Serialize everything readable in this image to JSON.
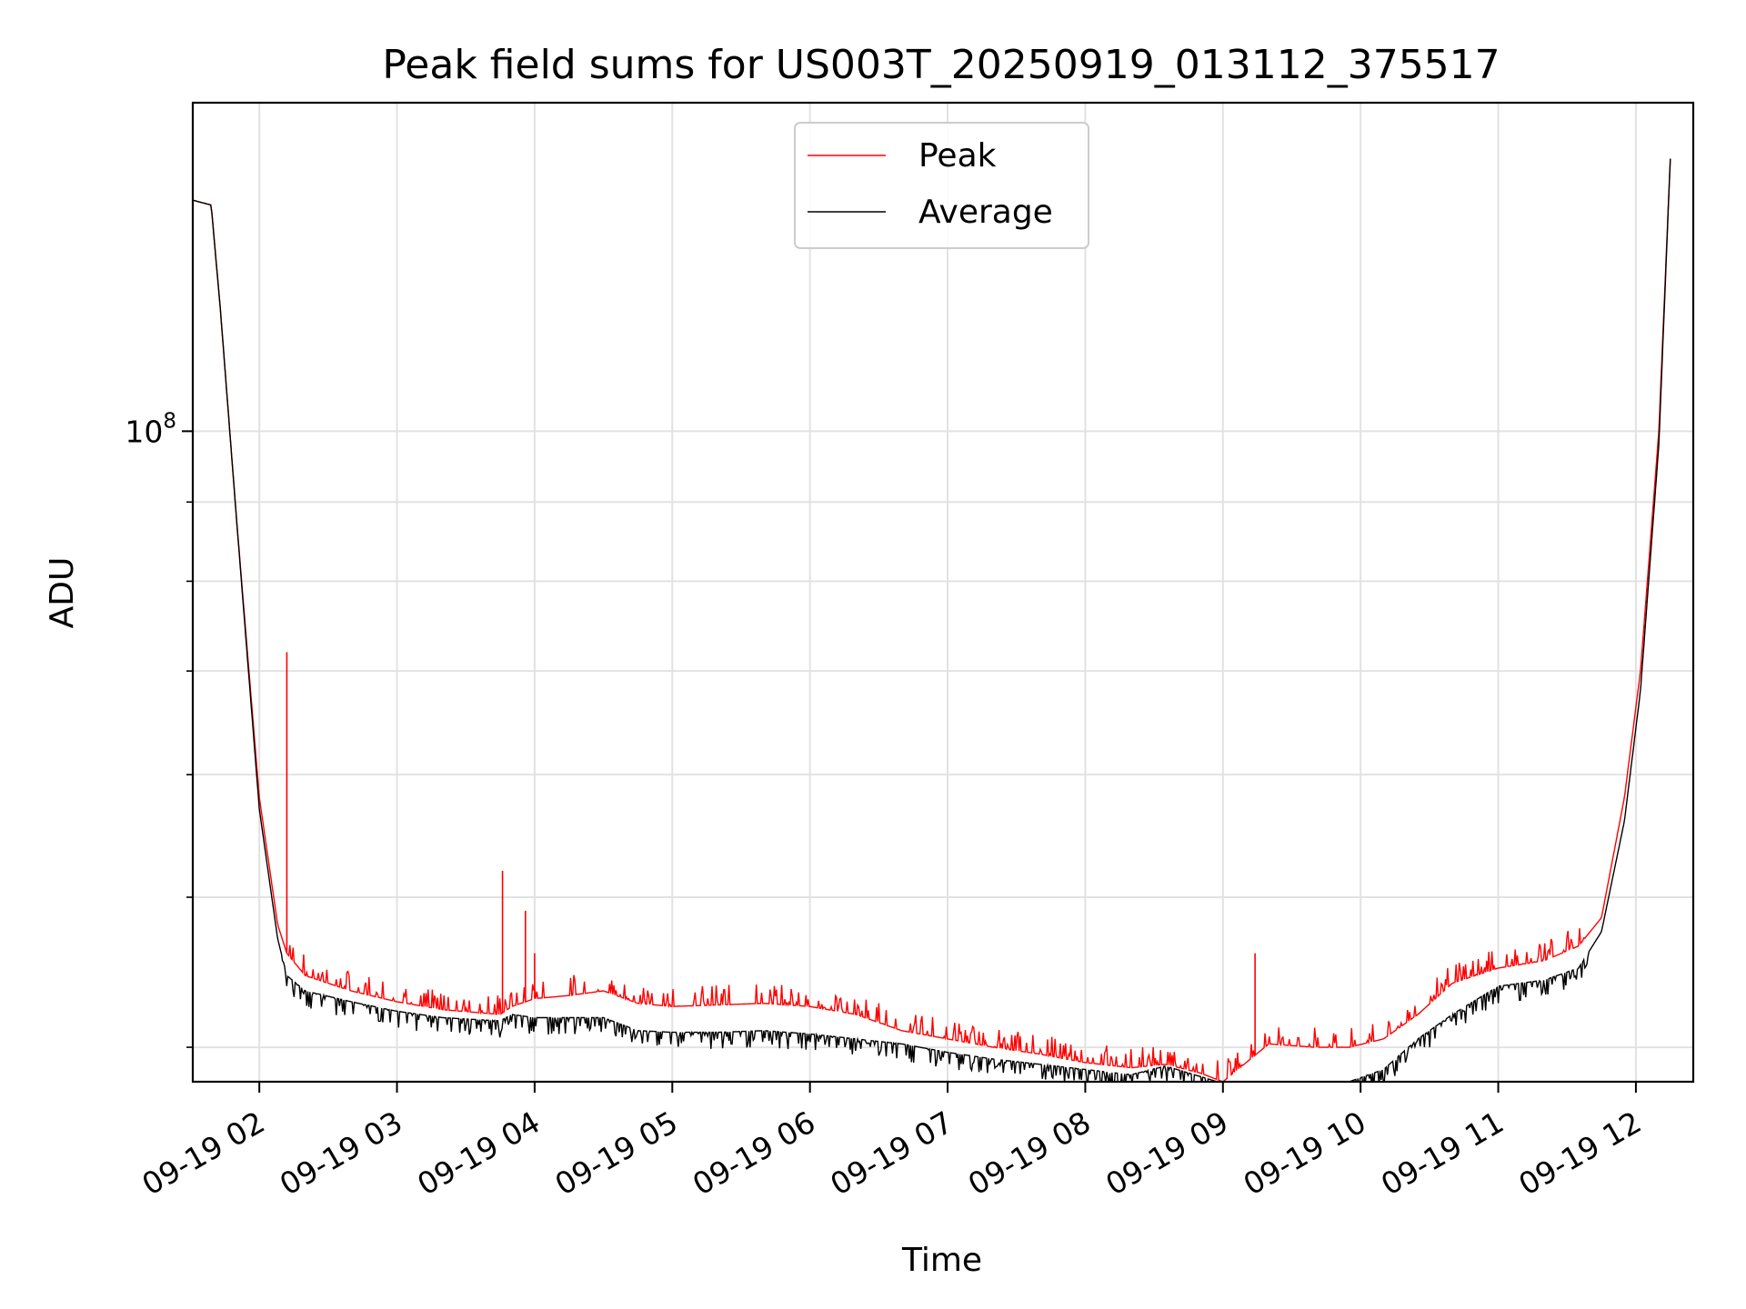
{
  "chart_data": {
    "type": "line",
    "title": "Peak field sums for US003T_20250919_013112_375517",
    "xlabel": "Time",
    "ylabel": "ADU",
    "x_scale": "time",
    "y_scale": "log",
    "xlim": [
      "2025-09-19T01:31",
      "2025-09-19T12:25"
    ],
    "ylim": [
      38000000,
      163000000
    ],
    "x_ticks": [
      "09-19 02",
      "09-19 03",
      "09-19 04",
      "09-19 05",
      "09-19 06",
      "09-19 07",
      "09-19 08",
      "09-19 09",
      "09-19 10",
      "09-19 11",
      "09-19 12"
    ],
    "x_tick_times": [
      "2025-09-19T02:00",
      "2025-09-19T03:00",
      "2025-09-19T04:00",
      "2025-09-19T05:00",
      "2025-09-19T06:00",
      "2025-09-19T07:00",
      "2025-09-19T08:00",
      "2025-09-19T09:00",
      "2025-09-19T10:00",
      "2025-09-19T11:00",
      "2025-09-19T12:00"
    ],
    "y_ticks": [
      {
        "base": "10",
        "exp": "8",
        "value": 100000000
      }
    ],
    "y_minor_ticks": [
      40000000,
      50000000,
      60000000,
      70000000,
      80000000,
      90000000
    ],
    "grid": true,
    "legend": "top-center",
    "series": [
      {
        "name": "Peak",
        "color": "#ff0000",
        "x": [
          "01:31",
          "01:39",
          "01:43",
          "01:50",
          "02:00",
          "02:08",
          "02:12",
          "02:20",
          "02:40",
          "03:00",
          "03:20",
          "03:45",
          "03:50",
          "04:00",
          "04:15",
          "04:30",
          "04:45",
          "05:00",
          "05:20",
          "05:40",
          "06:00",
          "06:20",
          "06:40",
          "07:00",
          "07:20",
          "07:40",
          "08:00",
          "08:20",
          "08:35",
          "08:50",
          "09:00",
          "09:20",
          "09:40",
          "09:55",
          "10:10",
          "10:25",
          "10:40",
          "11:00",
          "11:20",
          "11:35",
          "11:45",
          "11:55",
          "12:02",
          "12:10",
          "12:15"
        ],
        "y": [
          141000000,
          140000000,
          120000000,
          88000000,
          58000000,
          48000000,
          46000000,
          44500000,
          43500000,
          42800000,
          42300000,
          42000000,
          42500000,
          43000000,
          43200000,
          43500000,
          42700000,
          42500000,
          42600000,
          42700000,
          42500000,
          42000000,
          41000000,
          40500000,
          40000000,
          39600000,
          39100000,
          38800000,
          39000000,
          38500000,
          38000000,
          40200000,
          40000000,
          40000000,
          40500000,
          42000000,
          44000000,
          45000000,
          45500000,
          46500000,
          48500000,
          58000000,
          70000000,
          100000000,
          150000000
        ]
      },
      {
        "name": "Average",
        "color": "#000000",
        "x": [
          "01:31",
          "01:39",
          "01:43",
          "01:50",
          "02:00",
          "02:08",
          "02:12",
          "02:20",
          "02:40",
          "03:00",
          "03:20",
          "03:45",
          "03:50",
          "04:00",
          "04:15",
          "04:30",
          "04:45",
          "05:00",
          "05:20",
          "05:40",
          "06:00",
          "06:20",
          "06:40",
          "07:00",
          "07:20",
          "07:40",
          "08:00",
          "08:20",
          "08:35",
          "08:50",
          "09:00",
          "09:20",
          "09:40",
          "09:55",
          "10:10",
          "10:25",
          "10:40",
          "11:00",
          "11:20",
          "11:35",
          "11:45",
          "11:55",
          "12:02",
          "12:10",
          "12:15"
        ],
        "y": [
          141000000,
          140000000,
          120000000,
          88000000,
          57000000,
          47000000,
          44500000,
          43500000,
          42800000,
          42200000,
          41800000,
          41600000,
          42000000,
          41800000,
          41800000,
          41800000,
          41000000,
          40900000,
          40900000,
          41000000,
          40800000,
          40500000,
          40200000,
          39700000,
          39300000,
          39000000,
          38700000,
          38400000,
          38900000,
          38300000,
          37900000,
          37900000,
          37900000,
          38000000,
          38700000,
          40500000,
          42000000,
          43800000,
          44200000,
          45000000,
          47500000,
          56000000,
          68000000,
          98000000,
          150000000
        ]
      }
    ],
    "spikes": [
      {
        "series": "Peak",
        "x": "02:12",
        "y": 72000000
      },
      {
        "series": "Peak",
        "x": "03:46",
        "y": 52000000
      },
      {
        "series": "Peak",
        "x": "03:56",
        "y": 49000000
      },
      {
        "series": "Peak",
        "x": "04:00",
        "y": 46000000
      },
      {
        "series": "Peak",
        "x": "09:14",
        "y": 46000000
      }
    ]
  }
}
